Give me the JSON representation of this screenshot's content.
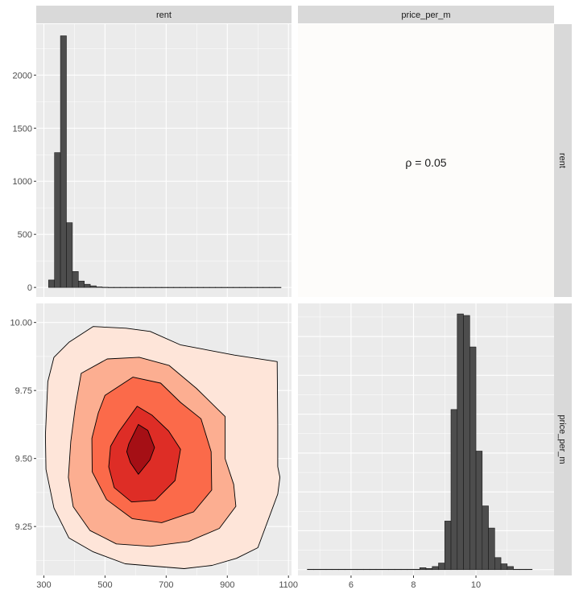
{
  "strips": {
    "col1": "rent",
    "col2": "price_per_m",
    "row1": "rent",
    "row2": "price_per_m"
  },
  "correlation_label": "ρ = 0.05",
  "colors": {
    "panel_bg": "#ebebeb",
    "strip_bg": "#d9d9d9",
    "bar_fill": "#4d4d4d",
    "corr_bg": "#fdfcfa",
    "contour_levels": [
      "#fee5d9",
      "#fcae91",
      "#fb6a4a",
      "#de2d26",
      "#a50f15"
    ]
  },
  "chart_data": [
    {
      "type": "bar",
      "panel": "rent histogram",
      "x_ticks": [
        300,
        500,
        700,
        900,
        1100
      ],
      "y_ticks": [
        0,
        500,
        1000,
        1500,
        2000
      ],
      "xlim": [
        275,
        1110
      ],
      "ylim": [
        -90,
        2480
      ],
      "bar_width": 19.5,
      "bars": [
        {
          "x": 325,
          "y": 70
        },
        {
          "x": 344.5,
          "y": 1270
        },
        {
          "x": 364,
          "y": 2370
        },
        {
          "x": 383.5,
          "y": 610
        },
        {
          "x": 403,
          "y": 150
        },
        {
          "x": 422.5,
          "y": 60
        },
        {
          "x": 442,
          "y": 30
        },
        {
          "x": 461.5,
          "y": 15
        },
        {
          "x": 481,
          "y": 5
        },
        {
          "x": 500.5,
          "y": 2
        },
        {
          "x": 520,
          "y": 1
        },
        {
          "x": 539.5,
          "y": 1
        },
        {
          "x": 559,
          "y": 1
        },
        {
          "x": 578.5,
          "y": 1
        },
        {
          "x": 598,
          "y": 1
        },
        {
          "x": 617.5,
          "y": 1
        },
        {
          "x": 637,
          "y": 1
        },
        {
          "x": 656.5,
          "y": 1
        },
        {
          "x": 676,
          "y": 1
        },
        {
          "x": 695.5,
          "y": 1
        },
        {
          "x": 715,
          "y": 1
        },
        {
          "x": 734.5,
          "y": 1
        },
        {
          "x": 754,
          "y": 1
        },
        {
          "x": 773.5,
          "y": 1
        },
        {
          "x": 793,
          "y": 1
        },
        {
          "x": 812.5,
          "y": 1
        },
        {
          "x": 832,
          "y": 1
        },
        {
          "x": 851.5,
          "y": 1
        },
        {
          "x": 871,
          "y": 1
        },
        {
          "x": 890.5,
          "y": 1
        },
        {
          "x": 910,
          "y": 1
        },
        {
          "x": 929.5,
          "y": 1
        },
        {
          "x": 949,
          "y": 1
        },
        {
          "x": 968.5,
          "y": 1
        },
        {
          "x": 988,
          "y": 1
        },
        {
          "x": 1007.5,
          "y": 1
        },
        {
          "x": 1027,
          "y": 1
        },
        {
          "x": 1046.5,
          "y": 1
        },
        {
          "x": 1066,
          "y": 1
        }
      ]
    },
    {
      "type": "text",
      "panel": "correlation",
      "text": "ρ = 0.05"
    },
    {
      "type": "heatmap",
      "panel": "rent vs price_per_m density contours",
      "x_ticks": [
        300,
        500,
        700,
        900,
        1100
      ],
      "y_ticks": [
        9.25,
        9.5,
        9.75,
        10.0
      ],
      "y_tick_labels": [
        "9.25",
        "9.50",
        "9.75",
        "10.00"
      ],
      "xlim": [
        275,
        1110
      ],
      "ylim": [
        9.07,
        10.07
      ],
      "levels": [
        [
          [
            382,
            9.927
          ],
          [
            461,
            9.985
          ],
          [
            569,
            9.979
          ],
          [
            648,
            9.967
          ],
          [
            746,
            9.918
          ],
          [
            923,
            9.88
          ],
          [
            1063,
            9.856
          ],
          [
            1065,
            9.625
          ],
          [
            1065,
            9.47
          ],
          [
            1072,
            9.431
          ],
          [
            1065,
            9.369
          ],
          [
            1000,
            9.172
          ],
          [
            930,
            9.133
          ],
          [
            850,
            9.107
          ],
          [
            759,
            9.095
          ],
          [
            661,
            9.104
          ],
          [
            566,
            9.113
          ],
          [
            461,
            9.157
          ],
          [
            382,
            9.208
          ],
          [
            333,
            9.318
          ],
          [
            307,
            9.46
          ],
          [
            305,
            9.586
          ],
          [
            313,
            9.783
          ],
          [
            333,
            9.872
          ]
        ],
        [
          [
            422,
            9.813
          ],
          [
            507,
            9.866
          ],
          [
            612,
            9.872
          ],
          [
            710,
            9.842
          ],
          [
            799,
            9.758
          ],
          [
            893,
            9.654
          ],
          [
            893,
            9.499
          ],
          [
            921,
            9.405
          ],
          [
            928,
            9.324
          ],
          [
            874,
            9.243
          ],
          [
            773,
            9.195
          ],
          [
            649,
            9.177
          ],
          [
            537,
            9.186
          ],
          [
            451,
            9.235
          ],
          [
            396,
            9.323
          ],
          [
            380,
            9.431
          ],
          [
            388,
            9.563
          ],
          [
            403,
            9.692
          ]
        ],
        [
          [
            500,
            9.732
          ],
          [
            591,
            9.799
          ],
          [
            682,
            9.777
          ],
          [
            747,
            9.706
          ],
          [
            814,
            9.646
          ],
          [
            847,
            9.525
          ],
          [
            849,
            9.384
          ],
          [
            790,
            9.304
          ],
          [
            685,
            9.264
          ],
          [
            589,
            9.279
          ],
          [
            505,
            9.349
          ],
          [
            458,
            9.451
          ],
          [
            457,
            9.574
          ],
          [
            478,
            9.668
          ]
        ],
        [
          [
            545,
            9.598
          ],
          [
            605,
            9.692
          ],
          [
            654,
            9.659
          ],
          [
            708,
            9.601
          ],
          [
            747,
            9.534
          ],
          [
            729,
            9.419
          ],
          [
            664,
            9.346
          ],
          [
            587,
            9.34
          ],
          [
            530,
            9.393
          ],
          [
            512,
            9.469
          ],
          [
            518,
            9.545
          ]
        ],
        [
          [
            578,
            9.554
          ],
          [
            609,
            9.625
          ],
          [
            640,
            9.603
          ],
          [
            662,
            9.54
          ],
          [
            647,
            9.495
          ],
          [
            609,
            9.442
          ],
          [
            583,
            9.485
          ],
          [
            571,
            9.525
          ]
        ]
      ]
    },
    {
      "type": "bar",
      "panel": "price_per_m histogram",
      "x_ticks": [
        6,
        8,
        10
      ],
      "xlim": [
        4.3,
        12.5
      ],
      "ylim": [
        -15,
        685
      ],
      "bar_width": 0.2,
      "bars": [
        {
          "x": 4.7,
          "y": 1
        },
        {
          "x": 4.9,
          "y": 1
        },
        {
          "x": 5.1,
          "y": 1
        },
        {
          "x": 5.3,
          "y": 1
        },
        {
          "x": 5.5,
          "y": 1
        },
        {
          "x": 5.7,
          "y": 1
        },
        {
          "x": 5.9,
          "y": 1
        },
        {
          "x": 6.1,
          "y": 1
        },
        {
          "x": 6.3,
          "y": 1
        },
        {
          "x": 6.5,
          "y": 1
        },
        {
          "x": 6.7,
          "y": 1
        },
        {
          "x": 6.9,
          "y": 1
        },
        {
          "x": 7.1,
          "y": 1
        },
        {
          "x": 7.3,
          "y": 1
        },
        {
          "x": 7.5,
          "y": 1
        },
        {
          "x": 7.7,
          "y": 1
        },
        {
          "x": 7.9,
          "y": 1
        },
        {
          "x": 8.1,
          "y": 1
        },
        {
          "x": 8.3,
          "y": 5
        },
        {
          "x": 8.5,
          "y": 3
        },
        {
          "x": 8.7,
          "y": 8
        },
        {
          "x": 8.9,
          "y": 17
        },
        {
          "x": 9.1,
          "y": 125
        },
        {
          "x": 9.3,
          "y": 412
        },
        {
          "x": 9.5,
          "y": 658
        },
        {
          "x": 9.7,
          "y": 654
        },
        {
          "x": 9.9,
          "y": 573
        },
        {
          "x": 10.1,
          "y": 305
        },
        {
          "x": 10.3,
          "y": 164
        },
        {
          "x": 10.5,
          "y": 107
        },
        {
          "x": 10.7,
          "y": 31
        },
        {
          "x": 10.9,
          "y": 15
        },
        {
          "x": 11.1,
          "y": 8
        },
        {
          "x": 11.3,
          "y": 1
        },
        {
          "x": 11.5,
          "y": 1
        },
        {
          "x": 11.7,
          "y": 1
        }
      ]
    }
  ]
}
